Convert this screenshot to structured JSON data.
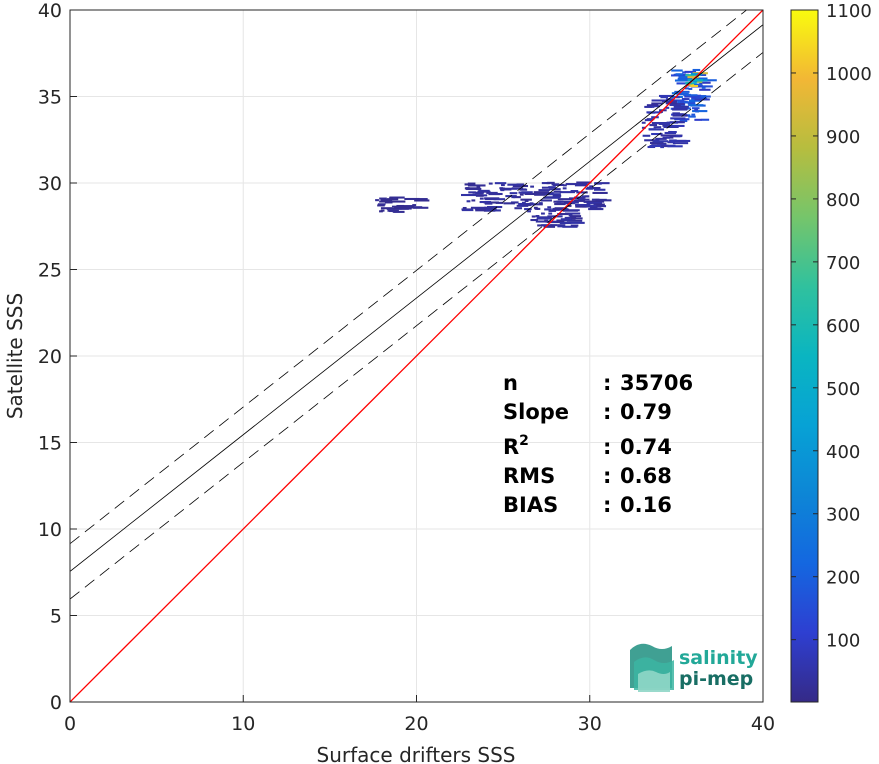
{
  "chart_data": {
    "type": "heatmap",
    "xlabel": "Surface drifters SSS",
    "ylabel": "Satellite SSS",
    "xlim": [
      0,
      40
    ],
    "ylim": [
      0,
      40
    ],
    "xticks": [
      "0",
      "10",
      "20",
      "30",
      "40"
    ],
    "yticks": [
      "0",
      "5",
      "10",
      "15",
      "20",
      "25",
      "30",
      "35",
      "40"
    ],
    "grid": true,
    "colorbar": {
      "min": 1,
      "max": 1100,
      "ticks": [
        "100",
        "200",
        "300",
        "400",
        "500",
        "600",
        "700",
        "800",
        "900",
        "1000",
        "1100"
      ],
      "colormap": "parula"
    },
    "lines": [
      {
        "kind": "identity",
        "slope": 1.0,
        "intercept": 0.0,
        "color": "#ff0000"
      },
      {
        "kind": "regression",
        "slope": 0.79,
        "intercept": 7.55,
        "color": "#000000"
      },
      {
        "kind": "regression-upper",
        "slope": 0.79,
        "intercept": 9.15,
        "color": "#000000",
        "dash": true
      },
      {
        "kind": "regression-lower",
        "slope": 0.79,
        "intercept": 5.95,
        "color": "#000000",
        "dash": true
      }
    ],
    "density_clusters": [
      {
        "x": [
          34.5,
          36.5
        ],
        "y": [
          33.5,
          36.5
        ],
        "level": 200
      },
      {
        "x": [
          35.5,
          36.2
        ],
        "y": [
          35.5,
          36.3
        ],
        "level": 900
      },
      {
        "x": [
          33.0,
          35.0
        ],
        "y": [
          32.0,
          35.0
        ],
        "level": 60
      },
      {
        "x": [
          22.5,
          30.5
        ],
        "y": [
          28.3,
          30.0
        ],
        "level": 40
      },
      {
        "x": [
          17.5,
          20.0
        ],
        "y": [
          28.2,
          29.2
        ],
        "level": 20
      },
      {
        "x": [
          26.5,
          29.0
        ],
        "y": [
          27.4,
          28.2
        ],
        "level": 40
      }
    ],
    "stats": [
      {
        "label": "n",
        "sep": ":",
        "value": "35706"
      },
      {
        "label": "Slope",
        "sep": ":",
        "value": "0.79"
      },
      {
        "label": "R",
        "sup": "2",
        "sep": ":",
        "value": "0.74"
      },
      {
        "label": "RMS",
        "sep": ":",
        "value": "0.68"
      },
      {
        "label": "BIAS",
        "sep": ":",
        "value": "0.16"
      }
    ]
  },
  "logo": {
    "line1": "salinity",
    "line2": "pi-mep",
    "color1": "#22a898",
    "color2": "#186e64"
  }
}
